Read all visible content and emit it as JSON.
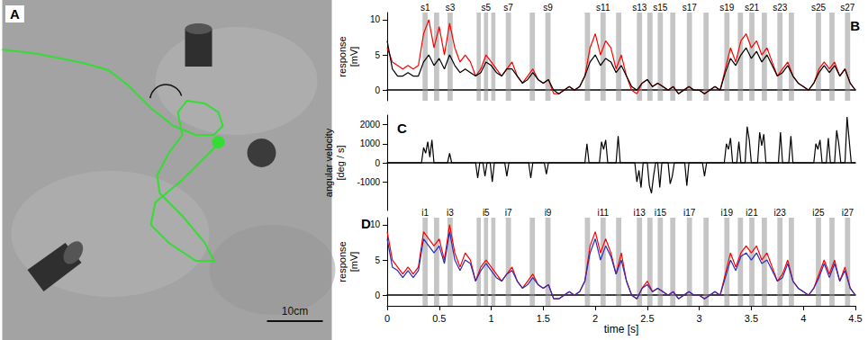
{
  "chart_data": [
    {
      "type": "image",
      "title": "A",
      "scale_bar": "10cm"
    },
    {
      "type": "line",
      "title": "B",
      "ylabel": "response [mV]",
      "tick_labels": "y",
      "grid": false,
      "xlim": [
        0,
        4.5
      ],
      "ylim": [
        -1.5,
        11
      ],
      "yticks": [
        0,
        5,
        10
      ],
      "x": [
        0,
        0.05,
        0.1,
        0.15,
        0.2,
        0.25,
        0.3,
        0.35,
        0.4,
        0.45,
        0.5,
        0.55,
        0.6,
        0.65,
        0.7,
        0.75,
        0.8,
        0.85,
        0.9,
        0.95,
        1,
        1.05,
        1.1,
        1.15,
        1.2,
        1.25,
        1.3,
        1.35,
        1.4,
        1.45,
        1.5,
        1.55,
        1.6,
        1.65,
        1.7,
        1.75,
        1.8,
        1.85,
        1.9,
        1.95,
        2,
        2.05,
        2.1,
        2.15,
        2.2,
        2.25,
        2.3,
        2.35,
        2.4,
        2.45,
        2.5,
        2.55,
        2.6,
        2.65,
        2.7,
        2.75,
        2.8,
        2.85,
        2.9,
        2.95,
        3,
        3.05,
        3.1,
        3.15,
        3.2,
        3.25,
        3.3,
        3.35,
        3.4,
        3.45,
        3.5,
        3.55,
        3.6,
        3.65,
        3.7,
        3.75,
        3.8,
        3.85,
        3.9,
        3.95,
        4,
        4.05,
        4.1,
        4.15,
        4.2,
        4.25,
        4.3,
        4.35,
        4.4,
        4.45,
        4.5
      ],
      "series": [
        {
          "color": "#ff0000",
          "values": [
            6,
            4,
            3.5,
            3,
            3.5,
            3,
            3.5,
            8,
            10,
            6,
            9,
            5,
            9.5,
            6,
            4,
            5,
            4,
            2,
            3,
            5,
            4,
            3,
            2,
            3,
            4,
            2,
            1,
            2,
            3,
            1.5,
            1,
            1.5,
            -0.5,
            -0.5,
            0,
            0.5,
            0,
            0.5,
            2,
            6,
            8,
            5,
            7,
            6,
            3,
            5,
            2,
            0,
            -0.5,
            1,
            1.5,
            0.5,
            1,
            0.5,
            0,
            0.5,
            -0.5,
            0,
            0.5,
            0,
            0,
            -0.5,
            0,
            0.5,
            0,
            3,
            6,
            4,
            7,
            8,
            6,
            7,
            5,
            6,
            4,
            2,
            3,
            4,
            2,
            1,
            0.5,
            0,
            1,
            3,
            4,
            3,
            4,
            2,
            3,
            1,
            0
          ]
        },
        {
          "color": "#000000",
          "values": [
            7,
            3,
            2,
            2,
            2.5,
            2,
            2,
            4,
            5,
            3.5,
            4.5,
            3,
            5,
            3.5,
            2.5,
            3,
            2.5,
            2,
            2.5,
            4,
            3.5,
            2.5,
            2,
            3,
            3,
            2,
            1,
            1.5,
            2.5,
            1.5,
            1,
            1.5,
            0,
            -0.5,
            0,
            0.5,
            0,
            0.5,
            2,
            4,
            5,
            3.5,
            4.5,
            4,
            2.5,
            3.5,
            2,
            0.5,
            0,
            1,
            1.5,
            0.5,
            1,
            0.5,
            0,
            0.5,
            -0.5,
            0,
            0.5,
            0,
            0,
            -0.5,
            0,
            0.5,
            0,
            2.5,
            4.5,
            3.5,
            5,
            6,
            4.5,
            5.5,
            4,
            5,
            3.5,
            2,
            2.5,
            3.5,
            2,
            1,
            0.5,
            0,
            1,
            2.5,
            3.5,
            2.5,
            3.5,
            2,
            3,
            1,
            0
          ]
        }
      ],
      "shaded": [
        [
          0.34,
          0.39
        ],
        [
          0.45,
          0.5
        ],
        [
          0.58,
          0.63
        ],
        [
          0.86,
          0.9
        ],
        [
          0.93,
          0.97
        ],
        [
          1,
          1.04
        ],
        [
          1.14,
          1.19
        ],
        [
          1.37,
          1.42
        ],
        [
          1.52,
          1.57
        ],
        [
          1.9,
          1.95
        ],
        [
          2.05,
          2.1
        ],
        [
          2.2,
          2.25
        ],
        [
          2.4,
          2.45
        ],
        [
          2.5,
          2.55
        ],
        [
          2.6,
          2.65
        ],
        [
          2.72,
          2.77
        ],
        [
          2.88,
          2.93
        ],
        [
          3.04,
          3.09
        ],
        [
          3.24,
          3.29
        ],
        [
          3.37,
          3.42
        ],
        [
          3.48,
          3.53
        ],
        [
          3.6,
          3.65
        ],
        [
          3.75,
          3.8
        ],
        [
          3.86,
          3.91
        ],
        [
          4.12,
          4.17
        ],
        [
          4.25,
          4.3
        ],
        [
          4.4,
          4.45
        ]
      ],
      "shaded_labels": [
        "s1",
        null,
        "s3",
        null,
        "s5",
        null,
        "s7",
        null,
        "s9",
        null,
        "s11",
        null,
        "s13",
        null,
        "s15",
        null,
        "s17",
        null,
        "s19",
        null,
        "s21",
        null,
        "s23",
        null,
        "s25",
        null,
        "s27"
      ]
    },
    {
      "type": "line",
      "title": "C",
      "ylabel": "angular velocity [deg / s]",
      "tick_labels": "y",
      "grid": false,
      "xlim": [
        0,
        4.5
      ],
      "ylim": [
        -2500,
        2500
      ],
      "yticks": [
        -1000,
        0,
        1000,
        2000
      ],
      "x": [
        0,
        0.33,
        0.35,
        0.37,
        0.39,
        0.41,
        0.43,
        0.45,
        0.58,
        0.6,
        0.62,
        0.85,
        0.87,
        0.89,
        0.92,
        0.94,
        0.96,
        0.99,
        1.01,
        1.03,
        1.13,
        1.15,
        1.17,
        1.36,
        1.38,
        1.4,
        1.51,
        1.53,
        1.55,
        1.9,
        1.92,
        1.94,
        2.04,
        2.06,
        2.08,
        2.1,
        2.12,
        2.2,
        2.22,
        2.24,
        2.38,
        2.4,
        2.42,
        2.44,
        2.46,
        2.5,
        2.52,
        2.54,
        2.56,
        2.58,
        2.6,
        2.62,
        2.64,
        2.7,
        2.72,
        2.74,
        2.76,
        2.86,
        2.88,
        2.9,
        3.03,
        3.05,
        3.07,
        3.24,
        3.26,
        3.28,
        3.3,
        3.32,
        3.36,
        3.38,
        3.4,
        3.44,
        3.46,
        3.48,
        3.5,
        3.56,
        3.58,
        3.6,
        3.62,
        3.64,
        3.76,
        3.78,
        3.8,
        3.86,
        3.88,
        3.9,
        4.1,
        4.12,
        4.14,
        4.16,
        4.18,
        4.22,
        4.24,
        4.26,
        4.3,
        4.32,
        4.34,
        4.36,
        4.4,
        4.42,
        4.44,
        4.46,
        4.5
      ],
      "series": [
        {
          "color": "#000000",
          "values": [
            0,
            0,
            800,
            500,
            1100,
            300,
            1200,
            0,
            0,
            500,
            0,
            0,
            -800,
            0,
            0,
            -700,
            0,
            0,
            -1000,
            0,
            0,
            -700,
            0,
            0,
            -800,
            0,
            0,
            -600,
            0,
            0,
            1000,
            0,
            0,
            1100,
            700,
            1200,
            0,
            0,
            1400,
            0,
            0,
            -1000,
            -400,
            -1300,
            0,
            0,
            -1200,
            -1600,
            -700,
            0,
            0,
            -1300,
            0,
            0,
            -1100,
            -700,
            0,
            0,
            -1200,
            0,
            0,
            -700,
            0,
            0,
            1000,
            700,
            1300,
            0,
            0,
            1100,
            0,
            0,
            1900,
            1200,
            0,
            0,
            1600,
            900,
            1500,
            0,
            0,
            1600,
            0,
            0,
            1400,
            0,
            0,
            1000,
            700,
            1200,
            0,
            0,
            1300,
            0,
            0,
            1700,
            1000,
            0,
            0,
            2400,
            1200,
            0,
            0
          ]
        }
      ]
    },
    {
      "type": "line",
      "title": "D",
      "ylabel": "response [mV]",
      "xlabel": "time [s]",
      "grid": false,
      "xlim": [
        0,
        4.5
      ],
      "xticks": [
        0,
        0.5,
        1,
        1.5,
        2,
        2.5,
        3,
        3.5,
        4,
        4.5
      ],
      "ylim": [
        -1.5,
        11
      ],
      "yticks": [
        0,
        5,
        10
      ],
      "x": [
        0,
        0.05,
        0.1,
        0.15,
        0.2,
        0.25,
        0.3,
        0.35,
        0.4,
        0.45,
        0.5,
        0.55,
        0.6,
        0.65,
        0.7,
        0.75,
        0.8,
        0.85,
        0.9,
        0.95,
        1,
        1.05,
        1.1,
        1.15,
        1.2,
        1.25,
        1.3,
        1.35,
        1.4,
        1.45,
        1.5,
        1.55,
        1.6,
        1.65,
        1.7,
        1.75,
        1.8,
        1.85,
        1.9,
        1.95,
        2,
        2.05,
        2.1,
        2.15,
        2.2,
        2.25,
        2.3,
        2.35,
        2.4,
        2.45,
        2.5,
        2.55,
        2.6,
        2.65,
        2.7,
        2.75,
        2.8,
        2.85,
        2.9,
        2.95,
        3,
        3.05,
        3.1,
        3.15,
        3.2,
        3.25,
        3.3,
        3.35,
        3.4,
        3.45,
        3.5,
        3.55,
        3.6,
        3.65,
        3.7,
        3.75,
        3.8,
        3.85,
        3.9,
        3.95,
        4,
        4.05,
        4.1,
        4.15,
        4.2,
        4.25,
        4.3,
        4.35,
        4.4,
        4.45,
        4.5
      ],
      "series": [
        {
          "color": "#ff0000",
          "values": [
            9,
            5,
            4,
            3,
            4,
            3,
            4,
            9,
            8,
            7,
            8,
            5,
            10,
            6,
            4,
            6,
            5,
            2,
            4,
            5,
            4,
            3,
            2,
            3,
            4,
            2,
            1,
            2,
            3,
            1.5,
            1,
            1.5,
            -0.5,
            -0.5,
            0,
            0.5,
            0,
            0.5,
            2,
            7,
            9,
            6,
            8,
            6,
            3,
            6,
            2,
            0,
            -0.5,
            1,
            2,
            0.5,
            1,
            0.5,
            0,
            0.5,
            -0.5,
            0,
            0.5,
            0,
            0,
            -0.5,
            0,
            0.5,
            0,
            3,
            6,
            4,
            6,
            7,
            6,
            7,
            5,
            6,
            4,
            2,
            3,
            5,
            2,
            1,
            0.5,
            0,
            1,
            3,
            5,
            3,
            5,
            2,
            4,
            1,
            0
          ]
        },
        {
          "color": "#2c2cb8",
          "values": [
            8,
            4,
            3.5,
            2.5,
            3.5,
            2.5,
            3.5,
            8,
            7,
            6,
            7,
            4.5,
            9,
            5,
            3.5,
            5,
            4.5,
            2,
            3.5,
            4.5,
            3.5,
            2.5,
            2,
            3,
            3.5,
            2,
            1,
            1.5,
            2.5,
            1.5,
            1,
            1.5,
            -0.5,
            -0.5,
            0,
            0.5,
            0,
            0.5,
            2,
            6,
            8,
            5,
            7,
            5.5,
            3,
            5,
            2,
            0,
            -0.5,
            1,
            1.5,
            0.5,
            1,
            0.5,
            0,
            0.5,
            -0.5,
            0,
            0.5,
            0,
            0,
            -0.5,
            0,
            0.5,
            0,
            2.5,
            5,
            3.5,
            5.5,
            6,
            5,
            6,
            4.5,
            5,
            3.5,
            2,
            2.5,
            4.5,
            2,
            1,
            0.5,
            0,
            1,
            2.5,
            4.5,
            2.5,
            4.5,
            2,
            3.5,
            1,
            0
          ]
        }
      ],
      "shaded": [
        [
          0.34,
          0.39
        ],
        [
          0.45,
          0.5
        ],
        [
          0.58,
          0.63
        ],
        [
          0.86,
          0.9
        ],
        [
          0.93,
          0.97
        ],
        [
          1,
          1.04
        ],
        [
          1.14,
          1.19
        ],
        [
          1.37,
          1.42
        ],
        [
          1.52,
          1.57
        ],
        [
          1.9,
          1.95
        ],
        [
          2.05,
          2.1
        ],
        [
          2.2,
          2.25
        ],
        [
          2.4,
          2.45
        ],
        [
          2.5,
          2.55
        ],
        [
          2.6,
          2.65
        ],
        [
          2.72,
          2.77
        ],
        [
          2.88,
          2.93
        ],
        [
          3.04,
          3.09
        ],
        [
          3.24,
          3.29
        ],
        [
          3.37,
          3.42
        ],
        [
          3.48,
          3.53
        ],
        [
          3.6,
          3.65
        ],
        [
          3.75,
          3.8
        ],
        [
          3.86,
          3.91
        ],
        [
          4.12,
          4.17
        ],
        [
          4.25,
          4.3
        ],
        [
          4.4,
          4.45
        ]
      ],
      "shaded_labels": [
        "i1",
        null,
        "i3",
        null,
        "i5",
        null,
        "i7",
        null,
        "i9",
        null,
        "i11",
        null,
        "i13",
        null,
        "i15",
        null,
        "i17",
        null,
        "i19",
        null,
        "i21",
        null,
        "i23",
        null,
        "i25",
        null,
        "i27"
      ]
    }
  ]
}
